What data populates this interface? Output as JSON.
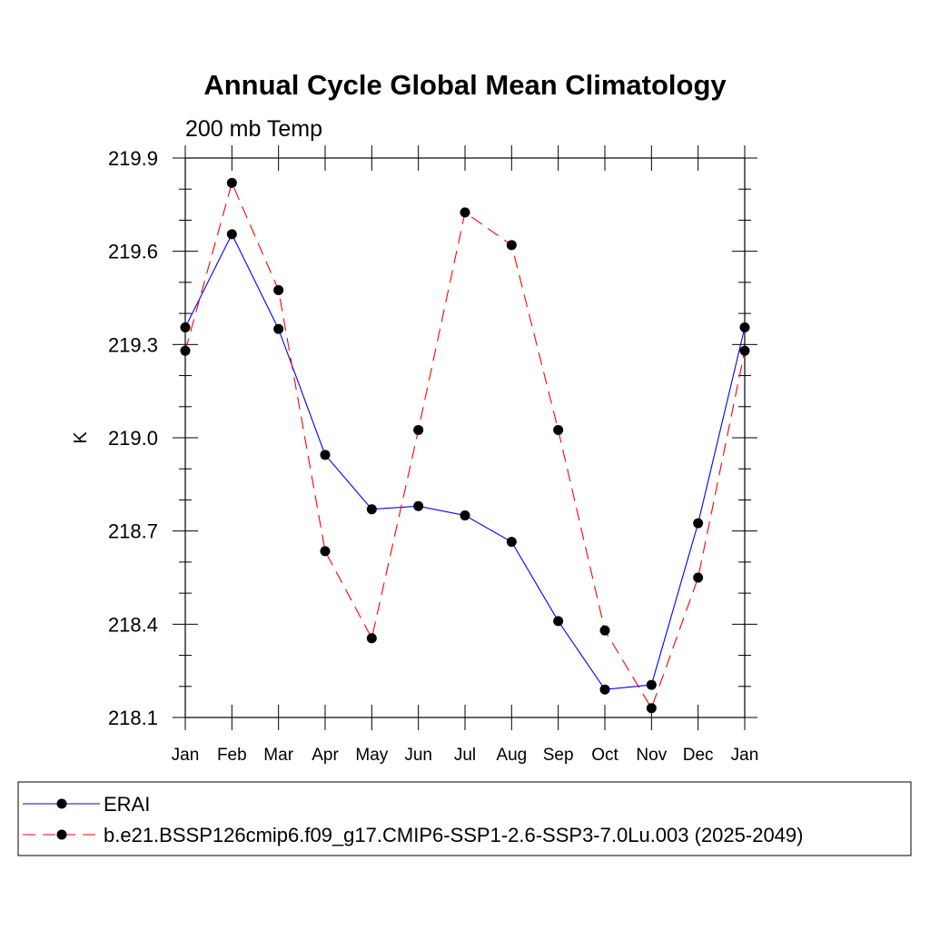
{
  "chart_data": {
    "type": "line",
    "title": "Annual Cycle Global Mean Climatology",
    "subtitle": "200 mb Temp",
    "ylabel": "K",
    "xlabel": "",
    "categories": [
      "Jan",
      "Feb",
      "Mar",
      "Apr",
      "May",
      "Jun",
      "Jul",
      "Aug",
      "Sep",
      "Oct",
      "Nov",
      "Dec",
      "Jan"
    ],
    "ylim": [
      218.1,
      219.9
    ],
    "yticks": [
      "218.1",
      "218.4",
      "218.7",
      "219.0",
      "219.3",
      "219.6",
      "219.9"
    ],
    "legend_position": "bottom",
    "series": [
      {
        "name": "ERAI",
        "color": "#0000ff",
        "dash": "solid",
        "values": [
          219.355,
          219.655,
          219.35,
          218.945,
          218.77,
          218.78,
          218.75,
          218.665,
          218.41,
          218.19,
          218.205,
          218.725,
          219.355
        ]
      },
      {
        "name": "b.e21.BSSP126cmip6.f09_g17.CMIP6-SSP1-2.6-SSP3-7.0Lu.003 (2025-2049)",
        "color": "#ff0000",
        "dash": "dashed",
        "values": [
          219.28,
          219.82,
          219.475,
          218.635,
          218.355,
          219.025,
          219.725,
          219.62,
          219.025,
          218.38,
          218.13,
          218.55,
          219.28
        ]
      }
    ]
  }
}
